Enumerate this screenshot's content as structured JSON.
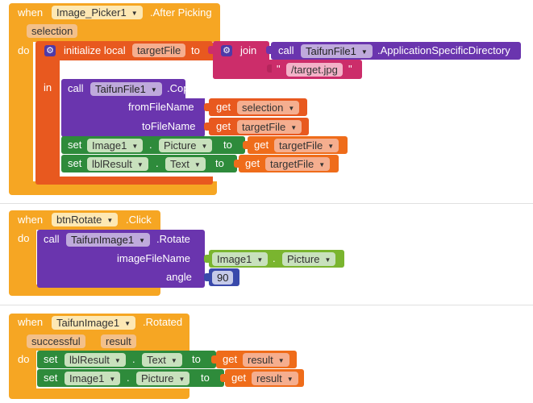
{
  "block1": {
    "when": "when",
    "component": "Image_Picker1",
    "event": ".After Picking",
    "param": "selection",
    "do": "do",
    "init_local": "initialize local",
    "local_name": "targetFile",
    "to": "to",
    "join": "join",
    "call": "call",
    "file_comp": "TaifunFile1",
    "app_dir_method": ".ApplicationSpecificDirectory",
    "quote_open": "\"",
    "string_value": "/target.jpg",
    "quote_close": "\"",
    "in": "in",
    "copy_call": "call",
    "copy_comp": "TaifunFile1",
    "copy_method": ".Copy",
    "from_label": "fromFileName",
    "get1": "get",
    "from_var": "selection",
    "to_label": "toFileName",
    "get2": "get",
    "to_var": "targetFile",
    "set1": "set",
    "set1_comp": "Image1",
    "set1_dot": ".",
    "set1_prop": "Picture",
    "set1_to": "to",
    "set1_get": "get",
    "set1_var": "targetFile",
    "set2": "set",
    "set2_comp": "lblResult",
    "set2_dot": ".",
    "set2_prop": "Text",
    "set2_to": "to",
    "set2_get": "get",
    "set2_var": "targetFile"
  },
  "block2": {
    "when": "when",
    "component": "btnRotate",
    "event": ".Click",
    "do": "do",
    "call": "call",
    "comp": "TaifunImage1",
    "method": ".Rotate",
    "arg1_label": "imageFileName",
    "arg1_comp": "Image1",
    "arg1_dot": ".",
    "arg1_prop": "Picture",
    "arg2_label": "angle",
    "arg2_value": "90"
  },
  "block3": {
    "when": "when",
    "component": "TaifunImage1",
    "event": ".Rotated",
    "param1": "successful",
    "param2": "result",
    "do": "do",
    "set1": "set",
    "set1_comp": "lblResult",
    "set1_dot": ".",
    "set1_prop": "Text",
    "set1_to": "to",
    "set1_get": "get",
    "set1_var": "result",
    "set2": "set",
    "set2_comp": "Image1",
    "set2_dot": ".",
    "set2_prop": "Picture",
    "set2_to": "to",
    "set2_get": "get",
    "set2_var": "result"
  },
  "colors": {
    "event": "#f6a623",
    "local": "#e8591f",
    "join": "#cc2d6a",
    "call": "#6a35ae",
    "set": "#2e8b3b",
    "property": "#7ab52f",
    "math": "#3949ab"
  },
  "icons": [
    "dropdown-arrow-icon",
    "gear-icon"
  ]
}
